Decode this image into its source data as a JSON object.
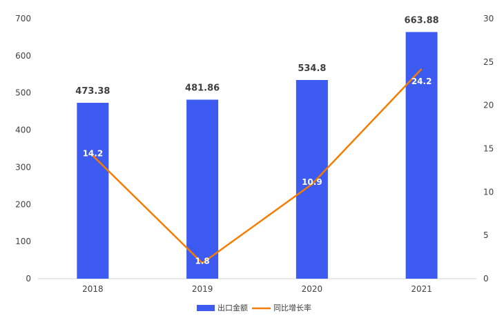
{
  "chart_data": {
    "type": "bar",
    "categories": [
      "2018",
      "2019",
      "2020",
      "2021"
    ],
    "series": [
      {
        "name": "出口金额",
        "type": "bar",
        "axis": "left",
        "values": [
          473.38,
          481.86,
          534.8,
          663.88
        ],
        "labels": [
          "473.38",
          "481.86",
          "534.8",
          "663.88"
        ],
        "color": "#3D5AF1"
      },
      {
        "name": "同比增长率",
        "type": "line",
        "axis": "right",
        "values": [
          14.2,
          1.8,
          10.9,
          24.2
        ],
        "labels": [
          "14.2",
          "1.8",
          "10.9",
          "24.2"
        ],
        "color": "#F57C00"
      }
    ],
    "y_left": {
      "min": 0,
      "max": 700,
      "step": 100,
      "ticks": [
        "0",
        "100",
        "200",
        "300",
        "400",
        "500",
        "600",
        "700"
      ]
    },
    "y_right": {
      "min": 0,
      "max": 30,
      "step": 5,
      "ticks": [
        "0",
        "5",
        "10",
        "15",
        "20",
        "25",
        "30"
      ]
    },
    "grid": false,
    "legend": "bottom-center"
  }
}
